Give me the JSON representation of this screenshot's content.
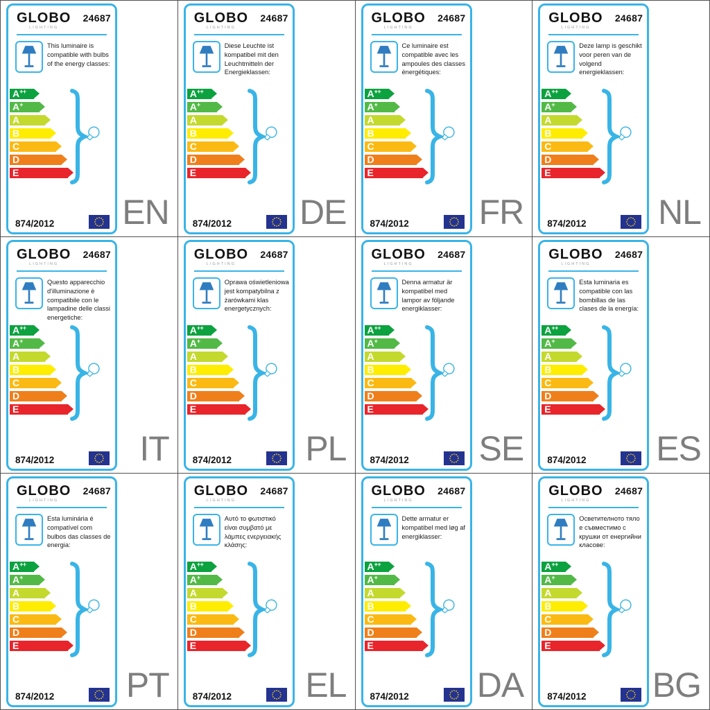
{
  "label": {
    "brand": "GLOBO",
    "brand_sub": "LIGHTING",
    "model_number": "24687",
    "regulation": "874/2012",
    "accent_color": "#39b4e6",
    "language_code_color": "#7e7e7e",
    "icons": {
      "lamp": "table-lamp-icon",
      "brace": "curly-brace-icon",
      "bulb": "light-bulb-icon",
      "flag": "eu-flag-icon"
    },
    "energy_classes": [
      {
        "label": "A",
        "sup": "++",
        "color": "#0ca23f"
      },
      {
        "label": "A",
        "sup": "+",
        "color": "#52b947"
      },
      {
        "label": "A",
        "sup": "",
        "color": "#c4d92e"
      },
      {
        "label": "B",
        "sup": "",
        "color": "#feed00"
      },
      {
        "label": "C",
        "sup": "",
        "color": "#fbba13"
      },
      {
        "label": "D",
        "sup": "",
        "color": "#ef7f1b"
      },
      {
        "label": "E",
        "sup": "",
        "color": "#e8252b"
      }
    ]
  },
  "cards": [
    {
      "language_code": "EN",
      "description": "This luminaire is compatible with bulbs of the energy classes:"
    },
    {
      "language_code": "DE",
      "description": "Diese Leuchte ist kompatibel mit den Leuchtmitteln der Energieklassen:"
    },
    {
      "language_code": "FR",
      "description": "Ce luminaire est compatible avec les ampoules des classes énergétiques:"
    },
    {
      "language_code": "NL",
      "description": "Deze lamp is geschikt voor peren van de volgend energieklassen:"
    },
    {
      "language_code": "IT",
      "description": "Questo apparecchio d'illuminazione è compatibile con le lampadine delle classi energetiche:"
    },
    {
      "language_code": "PL",
      "description": "Oprawa oświetleniowa jest kompatybilna z żarówkami klas energetycznych:"
    },
    {
      "language_code": "SE",
      "description": "Denna armatur är kompatibel med lampor av följande energiklasser:"
    },
    {
      "language_code": "ES",
      "description": "Esta luminaria es compatible con las bombillas de las clases de la energía:"
    },
    {
      "language_code": "PT",
      "description": "Esta luminária é compatível com bulbos das classes de energia:"
    },
    {
      "language_code": "EL",
      "description": "Αυτό το φωτιστικό είναι συμβατό με λάμπες ενεργειακής κλάσης:"
    },
    {
      "language_code": "DA",
      "description": "Dette armatur er kompatibel med løg af energiklasser:"
    },
    {
      "language_code": "BG",
      "description": "Осветителното тяло е съвместимо с крушки от енергийни класове:"
    }
  ]
}
